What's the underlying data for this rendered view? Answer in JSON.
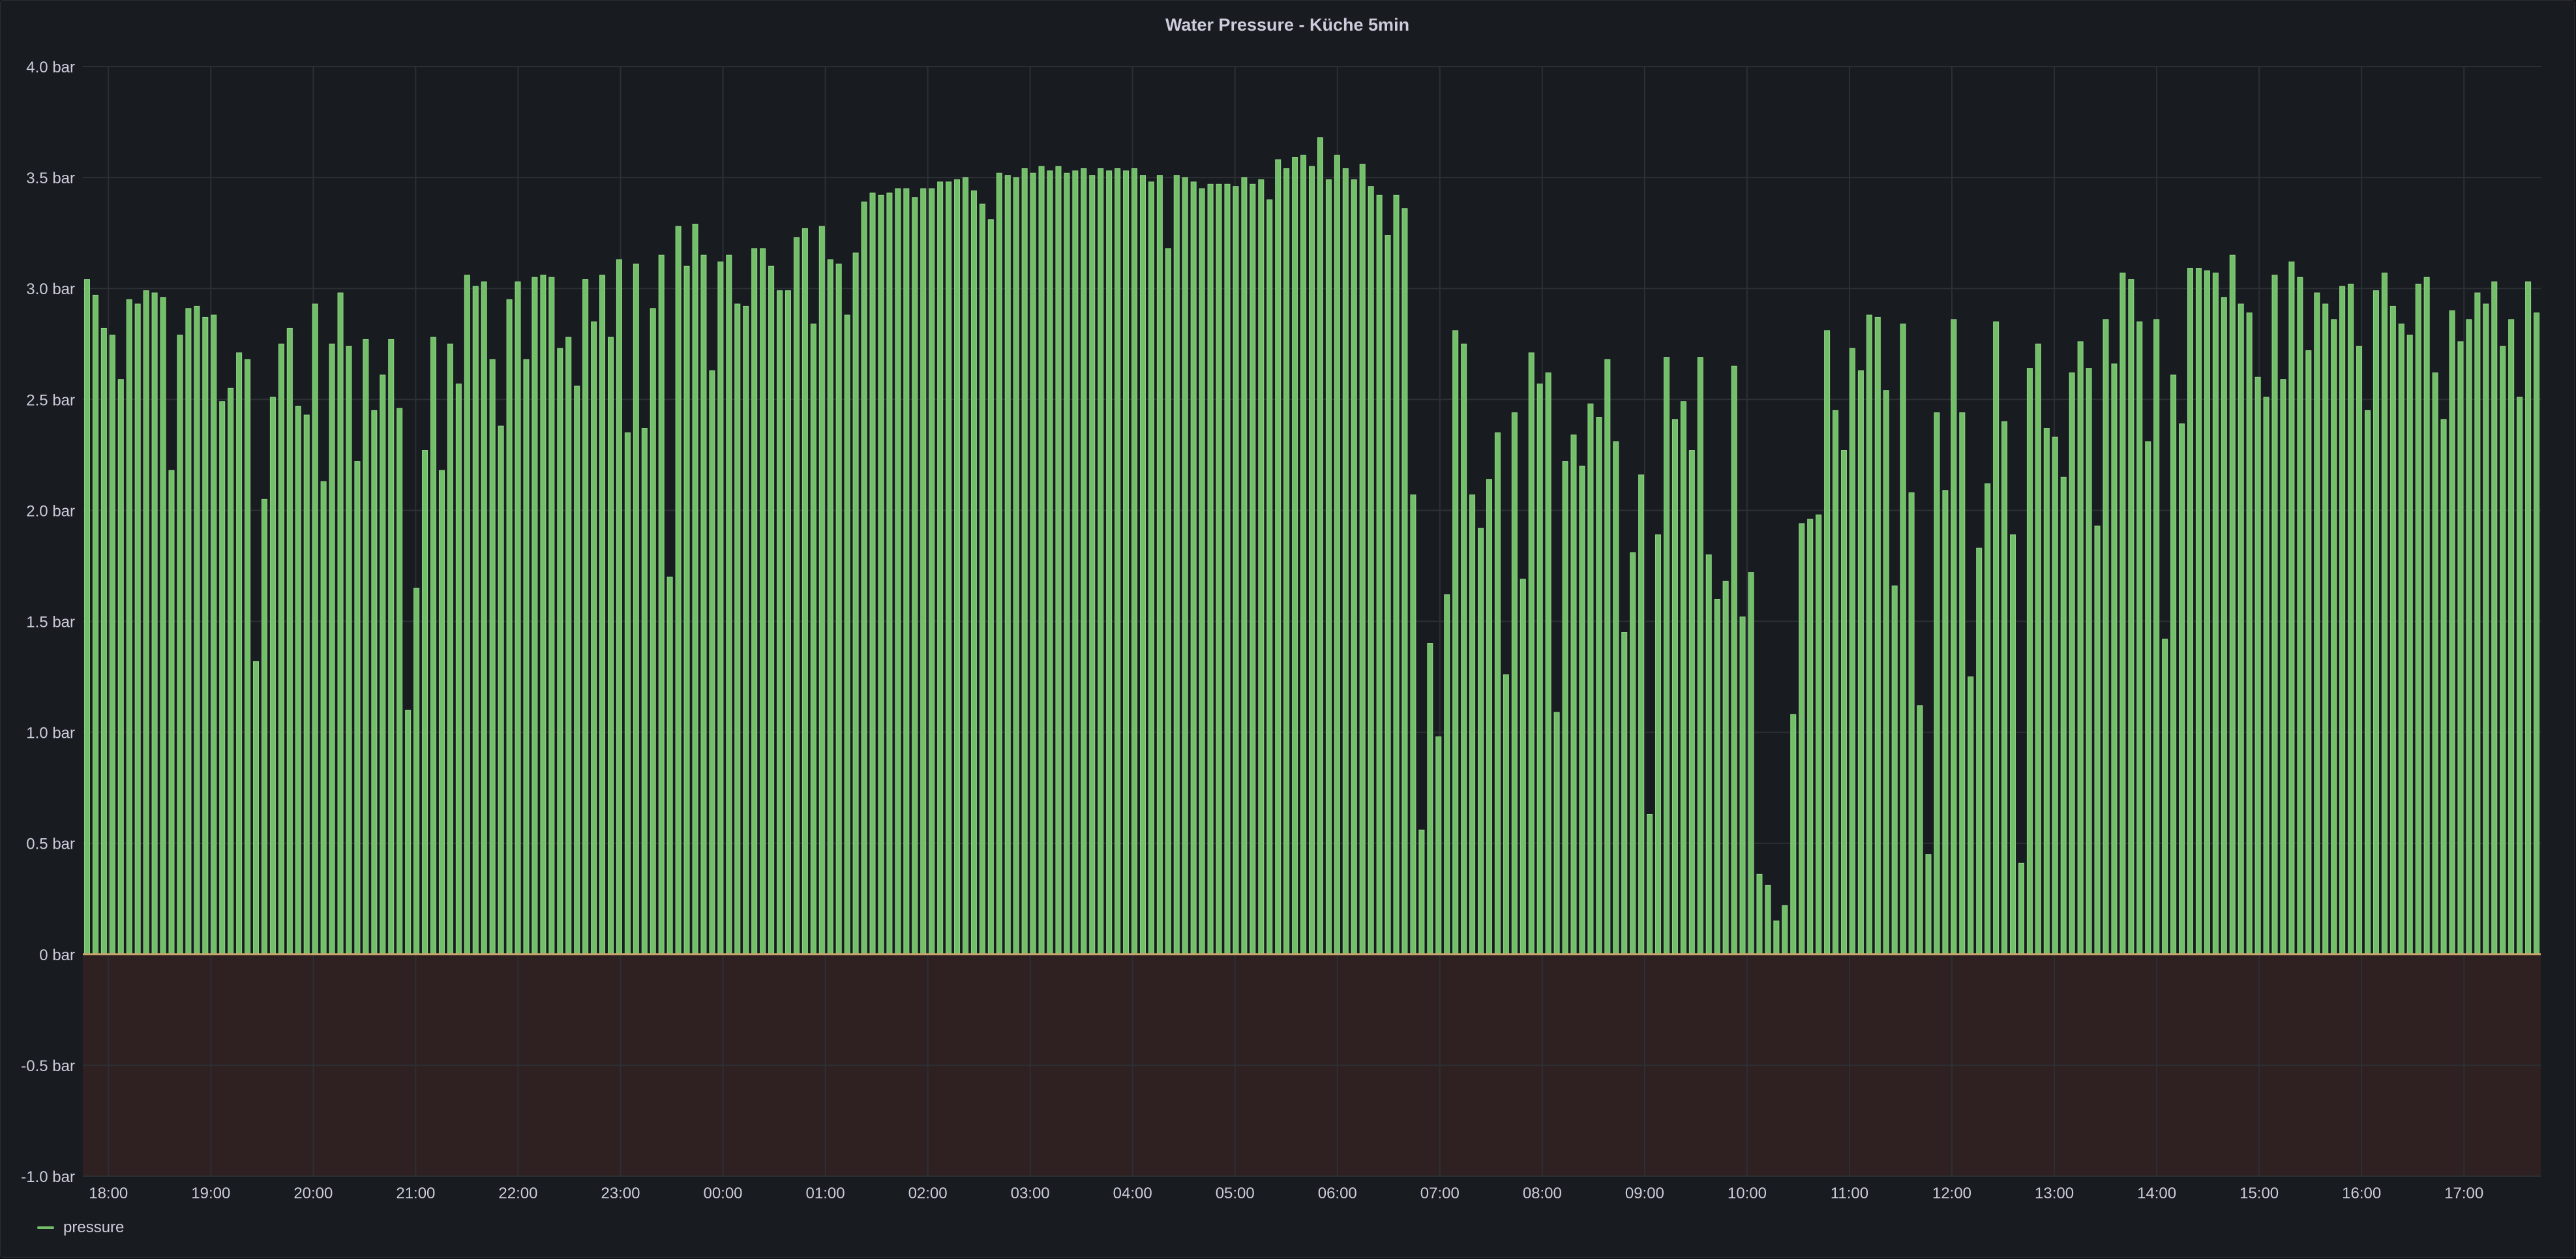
{
  "colors": {
    "background": "#181b1f",
    "bar": "#73bf69",
    "bar_stroke": "#8ed386",
    "grid": "#2c3035",
    "negative_region": "#2f2021",
    "zero_line": "#c9a36b",
    "text": "#ccccdc"
  },
  "legend": {
    "items": [
      {
        "name": "pressure",
        "color": "#73bf69"
      }
    ]
  },
  "chart_data": {
    "type": "bar",
    "title": "Water Pressure - Küche 5min",
    "xlabel": "",
    "ylabel": "",
    "unit": "bar",
    "ylim": [
      -1.0,
      4.0
    ],
    "y_ticks": [
      "-1.0 bar",
      "-0.5 bar",
      "0 bar",
      "0.5 bar",
      "1.0 bar",
      "1.5 bar",
      "2.0 bar",
      "2.5 bar",
      "3.0 bar",
      "3.5 bar",
      "4.0 bar"
    ],
    "y_tick_values": [
      -1.0,
      -0.5,
      0,
      0.5,
      1.0,
      1.5,
      2.0,
      2.5,
      3.0,
      3.5,
      4.0
    ],
    "x_start": "17:45",
    "x_end": "17:45",
    "interval_minutes": 5,
    "x_tick_labels": [
      "18:00",
      "19:00",
      "20:00",
      "21:00",
      "22:00",
      "23:00",
      "00:00",
      "01:00",
      "02:00",
      "03:00",
      "04:00",
      "05:00",
      "06:00",
      "07:00",
      "08:00",
      "09:00",
      "10:00",
      "11:00",
      "12:00",
      "13:00",
      "14:00",
      "15:00",
      "16:00",
      "17:00"
    ],
    "negative_threshold_region": true,
    "grid": true,
    "legend_position": "bottom-left",
    "series": [
      {
        "name": "pressure",
        "color": "#73bf69",
        "values": [
          3.04,
          2.97,
          2.82,
          2.79,
          2.59,
          2.95,
          2.93,
          2.99,
          2.98,
          2.96,
          2.18,
          2.79,
          2.91,
          2.92,
          2.87,
          2.88,
          2.49,
          2.55,
          2.71,
          2.68,
          1.32,
          2.05,
          2.51,
          2.75,
          2.82,
          2.47,
          2.43,
          2.93,
          2.13,
          2.75,
          2.98,
          2.74,
          2.22,
          2.77,
          2.45,
          2.61,
          2.77,
          2.46,
          1.1,
          1.65,
          2.27,
          2.78,
          2.18,
          2.75,
          2.57,
          3.06,
          3.01,
          3.03,
          2.68,
          2.38,
          2.95,
          3.03,
          2.68,
          3.05,
          3.06,
          3.05,
          2.73,
          2.78,
          2.56,
          3.04,
          2.85,
          3.06,
          2.78,
          3.13,
          2.35,
          3.11,
          2.37,
          2.91,
          3.15,
          1.7,
          3.28,
          3.1,
          3.29,
          3.15,
          2.63,
          3.12,
          3.15,
          2.93,
          2.92,
          3.18,
          3.18,
          3.1,
          2.99,
          2.99,
          3.23,
          3.27,
          2.84,
          3.28,
          3.13,
          3.11,
          2.88,
          3.16,
          3.39,
          3.43,
          3.42,
          3.43,
          3.45,
          3.45,
          3.41,
          3.45,
          3.45,
          3.48,
          3.48,
          3.49,
          3.5,
          3.44,
          3.38,
          3.31,
          3.52,
          3.51,
          3.5,
          3.54,
          3.52,
          3.55,
          3.53,
          3.55,
          3.52,
          3.53,
          3.54,
          3.51,
          3.54,
          3.53,
          3.54,
          3.53,
          3.54,
          3.51,
          3.48,
          3.51,
          3.18,
          3.51,
          3.5,
          3.48,
          3.45,
          3.47,
          3.47,
          3.47,
          3.46,
          3.5,
          3.47,
          3.49,
          3.4,
          3.58,
          3.54,
          3.59,
          3.6,
          3.55,
          3.68,
          3.49,
          3.6,
          3.54,
          3.49,
          3.56,
          3.46,
          3.42,
          3.24,
          3.42,
          3.36,
          2.07,
          0.56,
          1.4,
          0.98,
          1.62,
          2.81,
          2.75,
          2.07,
          1.92,
          2.14,
          2.35,
          1.26,
          2.44,
          1.69,
          2.71,
          2.57,
          2.62,
          1.09,
          2.22,
          2.34,
          2.2,
          2.48,
          2.42,
          2.68,
          2.31,
          1.45,
          1.81,
          2.16,
          0.63,
          1.89,
          2.69,
          2.41,
          2.49,
          2.27,
          2.69,
          1.8,
          1.6,
          1.68,
          2.65,
          1.52,
          1.72,
          0.36,
          0.31,
          0.15,
          0.22,
          1.08,
          1.94,
          1.96,
          1.98,
          2.81,
          2.45,
          2.27,
          2.73,
          2.63,
          2.88,
          2.87,
          2.54,
          1.66,
          2.84,
          2.08,
          1.12,
          0.45,
          2.44,
          2.09,
          2.86,
          2.44,
          1.25,
          1.83,
          2.12,
          2.85,
          2.4,
          1.89,
          0.41,
          2.64,
          2.75,
          2.37,
          2.33,
          2.15,
          2.62,
          2.76,
          2.64,
          1.93,
          2.86,
          2.66,
          3.07,
          3.04,
          2.85,
          2.31,
          2.86,
          1.42,
          2.61,
          2.39,
          3.09,
          3.09,
          3.08,
          3.07,
          2.96,
          3.15,
          2.93,
          2.89,
          2.6,
          2.51,
          3.06,
          2.59,
          3.12,
          3.05,
          2.72,
          2.98,
          2.93,
          2.86,
          3.01,
          3.02,
          2.74,
          2.45,
          2.99,
          3.07,
          2.92,
          2.84,
          2.79,
          3.02,
          3.05,
          2.62,
          2.41,
          2.9,
          2.76,
          2.86,
          2.98,
          2.93,
          3.03,
          2.74,
          2.86,
          2.51,
          3.03,
          2.89
        ]
      }
    ]
  }
}
